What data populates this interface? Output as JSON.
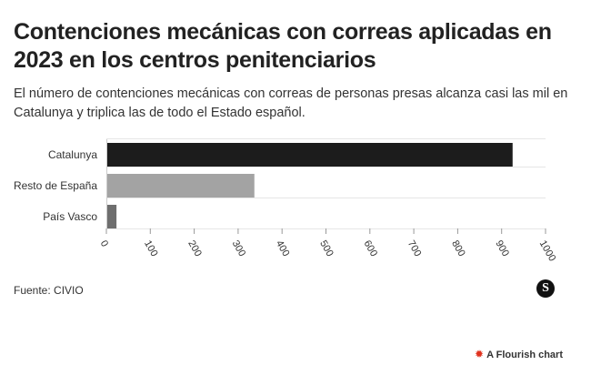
{
  "header": {
    "title": "Contenciones mecánicas con correas aplicadas en 2023 en los centros penitenciarios",
    "subtitle": "El número de contenciones mecánicas con correas de personas presas alcanza casi las mil en Catalunya y triplica las de todo el Estado español."
  },
  "chart_data": {
    "type": "bar",
    "orientation": "horizontal",
    "categories": [
      "Catalunya",
      "Resto de España",
      "País Vasco"
    ],
    "values": [
      925,
      337,
      23
    ],
    "colors": [
      "#1c1c1c",
      "#a3a3a3",
      "#6e6e6e"
    ],
    "xlim": [
      0,
      1000
    ],
    "xticks": [
      0,
      100,
      200,
      300,
      400,
      500,
      600,
      700,
      800,
      900,
      1000
    ],
    "grid": true,
    "title": "",
    "xlabel": "",
    "ylabel": ""
  },
  "footer": {
    "source": "Fuente: CIVIO",
    "logo_letter": "S",
    "flourish_label": "A Flourish chart",
    "flourish_icon": "flourish-burst-icon"
  }
}
